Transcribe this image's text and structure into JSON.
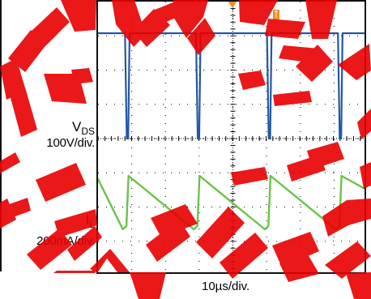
{
  "channels": {
    "vds": {
      "symbol": "V",
      "subscript": "DS",
      "scale": "100V/div.",
      "color": "#2456a5"
    },
    "il": {
      "symbol": "I",
      "subscript": "L",
      "scale": "200mA/div.",
      "color": "#6bc24a"
    }
  },
  "time_scale": "10µs/div.",
  "colors": {
    "trigger": "#f18b1f",
    "grid": "#000000",
    "marker_blue": "#2456a5",
    "marker_green": "#6bc24a",
    "watermark": "#e80000"
  },
  "chart_data": {
    "type": "line",
    "x_unit": "µs",
    "series": [
      {
        "name": "VDS",
        "scale": "100V/div.",
        "x": [
          0,
          3.8,
          4.05,
          4.25,
          4.45,
          13.8,
          14.05,
          14.25,
          14.45,
          23.8,
          24.05,
          24.25,
          24.45,
          33.8,
          34.05,
          34.25,
          34.45,
          38
        ],
        "y_div": [
          3.25,
          3.25,
          0.0,
          -0.0,
          3.25,
          3.25,
          0.0,
          -0.0,
          3.25,
          3.25,
          0.0,
          -0.0,
          3.25,
          3.25,
          0.0,
          -0.0,
          3.25,
          3.25
        ]
      },
      {
        "name": "IL",
        "scale": "200mA/div.",
        "x": [
          0,
          3.5,
          4.0,
          4.3,
          13.5,
          14.0,
          14.3,
          23.5,
          24.0,
          24.3,
          33.5,
          34.0,
          34.3,
          38
        ],
        "y_div": [
          -1.25,
          -2.8,
          -2.7,
          -1.15,
          -2.8,
          -2.7,
          -1.15,
          -2.8,
          -2.7,
          -1.15,
          -2.8,
          -2.7,
          -1.15,
          -1.6
        ]
      }
    ],
    "xlim": [
      0,
      38
    ],
    "ylim_div": [
      -4,
      4
    ],
    "grid": true
  }
}
